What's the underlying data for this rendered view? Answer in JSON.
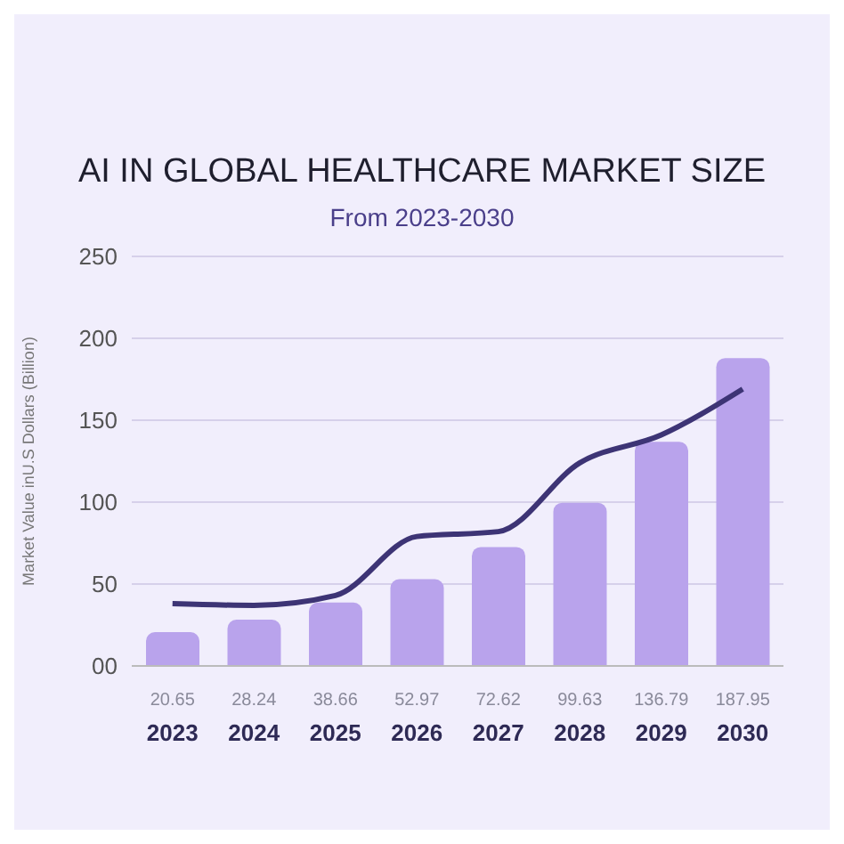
{
  "chart_data": {
    "type": "bar",
    "title": "AI IN GLOBAL HEALTHCARE MARKET SIZE",
    "subtitle": "From 2023-2030",
    "ylabel": "Market Value inU.S Dollars (Billion)",
    "categories": [
      "2023",
      "2024",
      "2025",
      "2026",
      "2027",
      "2028",
      "2029",
      "2030"
    ],
    "series": [
      {
        "color": "#b9a3ec",
        "values": [
          20.65,
          28.24,
          38.66,
          52.97,
          72.62,
          99.63,
          136.79,
          187.95
        ],
        "value_labels": [
          "20.65",
          "28.24",
          "38.66",
          "52.97",
          "72.62",
          "99.63",
          "136.79",
          "187.95"
        ]
      },
      {
        "type": "line",
        "color": "#3d3475",
        "values": [
          38,
          37,
          43,
          79,
          82,
          124,
          141,
          169
        ]
      }
    ],
    "ylim": [
      0,
      250
    ],
    "yticks": [
      {
        "value": 0,
        "label": "00"
      },
      50,
      100,
      150,
      200,
      250
    ],
    "grid": "y"
  }
}
